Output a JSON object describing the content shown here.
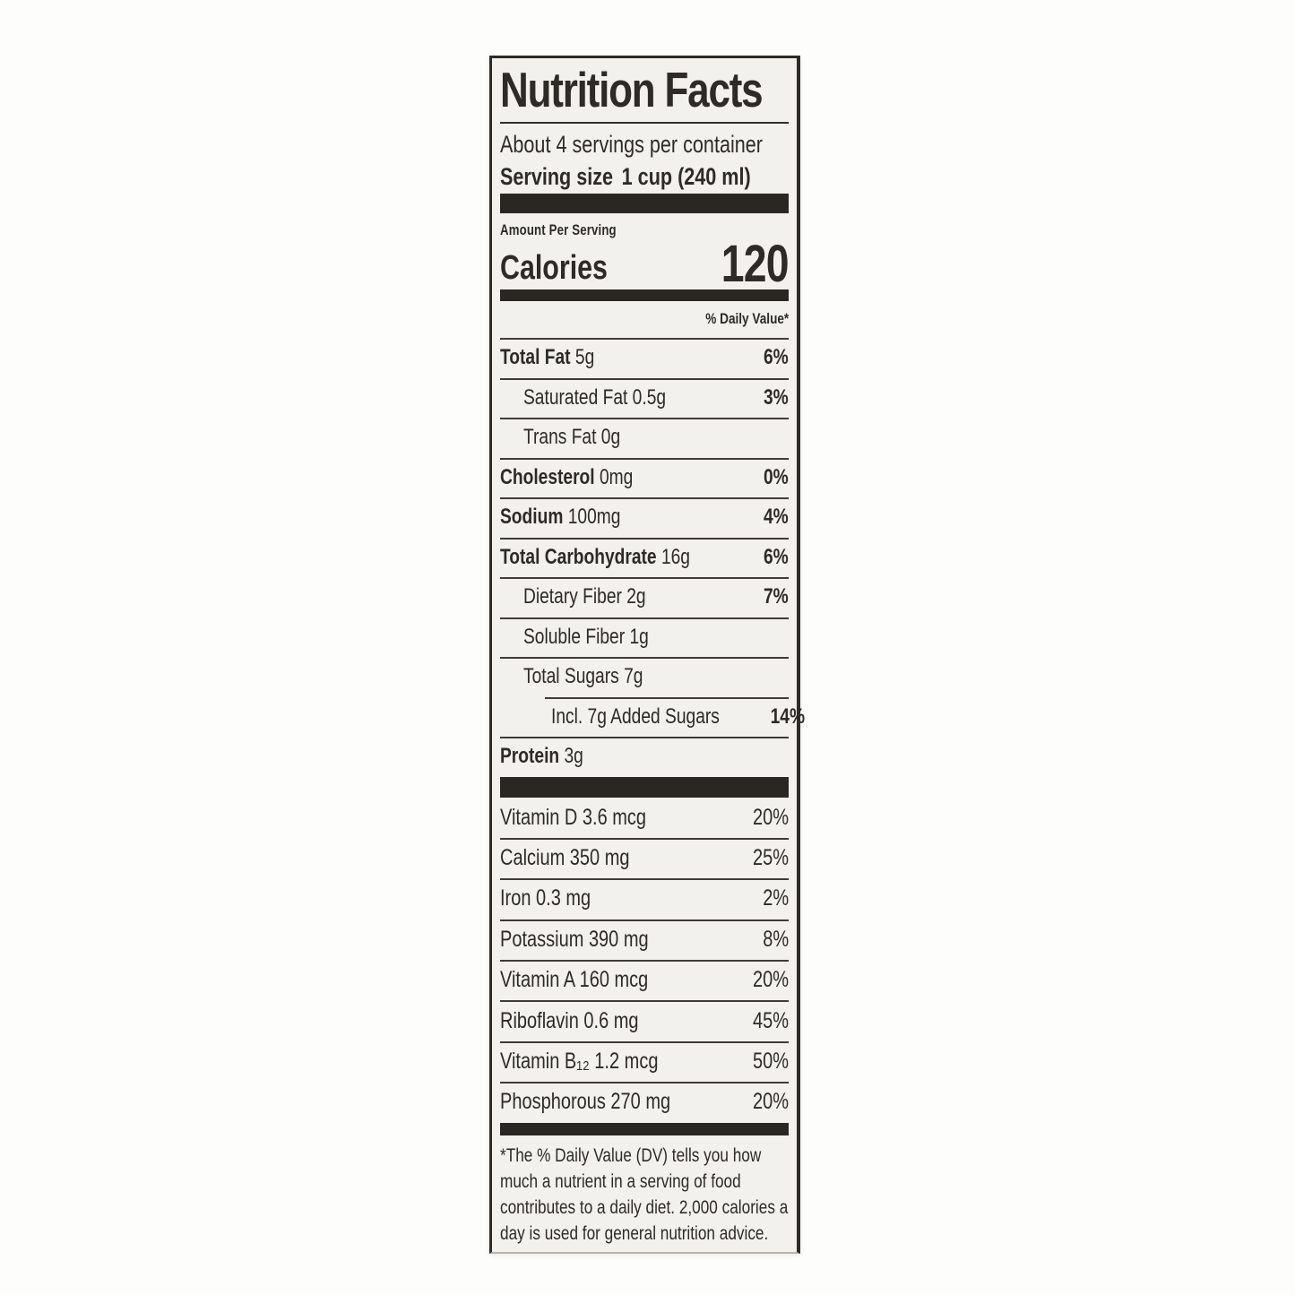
{
  "label": {
    "title": "Nutrition Facts",
    "servings_per_container": "About 4 servings per container",
    "serving_size_label": "Serving size",
    "serving_size_value": "1 cup (240 ml)",
    "amount_per_serving": "Amount Per Serving",
    "calories_label": "Calories",
    "calories_value": "120",
    "daily_value_header": "% Daily Value*",
    "nutrients": [
      {
        "name": "Total Fat",
        "amount": "5g",
        "dv": "6%",
        "bold": true,
        "indent": 0,
        "sep_indent": false
      },
      {
        "name": "Saturated Fat",
        "amount": "0.5g",
        "dv": "3%",
        "bold": false,
        "indent": 1,
        "sep_indent": false
      },
      {
        "name": "Trans Fat",
        "amount": "0g",
        "dv": "",
        "bold": false,
        "indent": 1,
        "sep_indent": false
      },
      {
        "name": "Cholesterol",
        "amount": "0mg",
        "dv": "0%",
        "bold": true,
        "indent": 0,
        "sep_indent": false
      },
      {
        "name": "Sodium",
        "amount": "100mg",
        "dv": "4%",
        "bold": true,
        "indent": 0,
        "sep_indent": false
      },
      {
        "name": "Total Carbohydrate",
        "amount": "16g",
        "dv": "6%",
        "bold": true,
        "indent": 0,
        "sep_indent": false
      },
      {
        "name": "Dietary Fiber",
        "amount": "2g",
        "dv": "7%",
        "bold": false,
        "indent": 1,
        "sep_indent": false
      },
      {
        "name": "Soluble Fiber",
        "amount": "1g",
        "dv": "",
        "bold": false,
        "indent": 1,
        "sep_indent": false
      },
      {
        "name": "Total Sugars",
        "amount": "7g",
        "dv": "",
        "bold": false,
        "indent": 1,
        "sep_indent": false
      },
      {
        "name": "Incl. 7g Added Sugars",
        "amount": "",
        "dv": "14%",
        "bold": false,
        "indent": 2,
        "sep_indent": true
      },
      {
        "name": "Protein",
        "amount": "3g",
        "dv": "",
        "bold": true,
        "indent": 0,
        "sep_indent": false
      }
    ],
    "vitamins": [
      {
        "name": "Vitamin D",
        "amount": "3.6 mcg",
        "dv": "20%"
      },
      {
        "name": "Calcium",
        "amount": "350 mg",
        "dv": "25%"
      },
      {
        "name": "Iron",
        "amount": "0.3 mg",
        "dv": "2%"
      },
      {
        "name": "Potassium",
        "amount": "390 mg",
        "dv": "8%"
      },
      {
        "name": "Vitamin A",
        "amount": "160 mcg",
        "dv": "20%"
      },
      {
        "name": "Riboflavin",
        "amount": "0.6 mg",
        "dv": "45%"
      },
      {
        "name": "Vitamin B₁₂",
        "amount": "1.2 mcg",
        "dv": "50%"
      },
      {
        "name": "Phosphorous",
        "amount": "270 mg",
        "dv": "20%"
      }
    ],
    "footnote": "*The % Daily Value (DV) tells you how much a nutrient in a serving of food contributes to a daily diet. 2,000 calories a day is used for general nutrition advice."
  },
  "colors": {
    "ink": "#2e2b27",
    "label_background": "#f2f1ed",
    "page_background": "#fdfdfc",
    "divider_bar": "#2a2723"
  }
}
